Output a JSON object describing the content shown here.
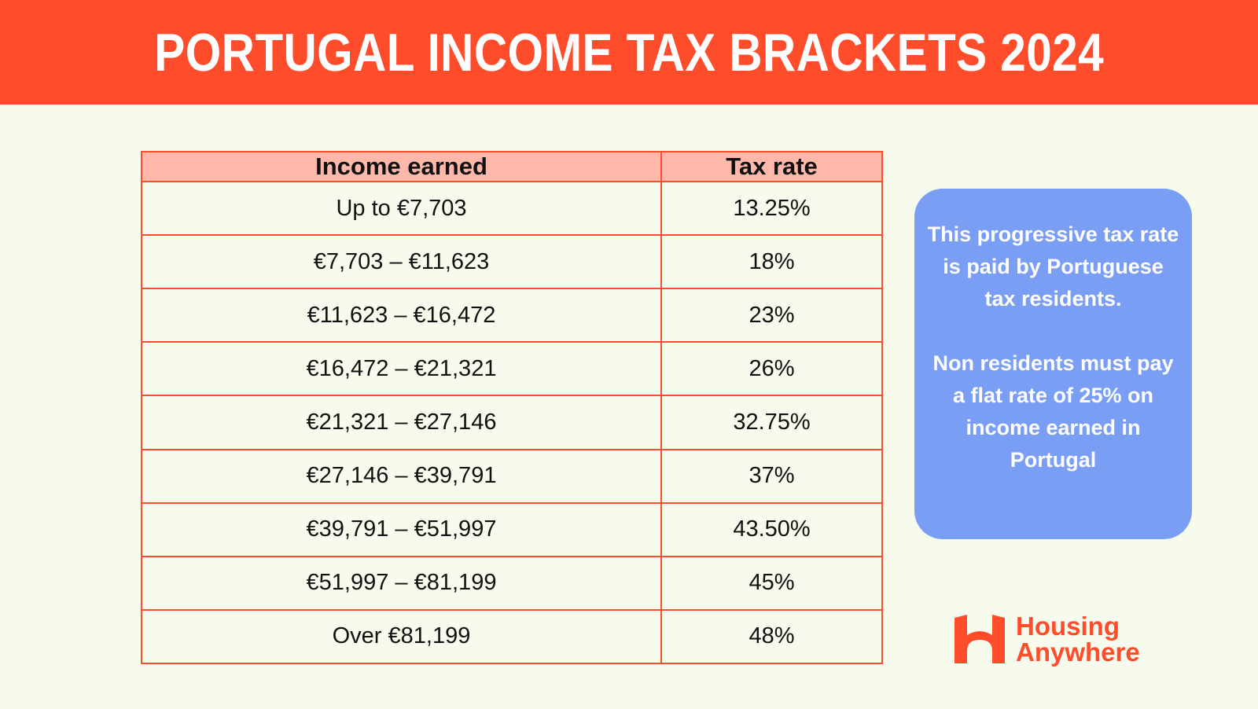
{
  "header": {
    "title": "PORTUGAL INCOME TAX BRACKETS 2024"
  },
  "chart_data": {
    "type": "table",
    "columns": [
      "Income earned",
      "Tax rate"
    ],
    "rows": [
      [
        "Up to €7,703",
        "13.25%"
      ],
      [
        "€7,703 – €11,623",
        "18%"
      ],
      [
        "€11,623 – €16,472",
        "23%"
      ],
      [
        "€16,472 – €21,321",
        "26%"
      ],
      [
        "€21,321 – €27,146",
        "32.75%"
      ],
      [
        "€27,146 – €39,791",
        "37%"
      ],
      [
        "€39,791 – €51,997",
        "43.50%"
      ],
      [
        "€51,997 – €81,199",
        "45%"
      ],
      [
        "Over €81,199",
        "48%"
      ]
    ]
  },
  "info_box": {
    "paragraph_1": "This progressive tax rate is paid by Portuguese tax residents.",
    "paragraph_2": "Non residents must pay a flat rate of 25% on income earned in Portugal"
  },
  "logo": {
    "line_1": "Housing",
    "line_2": "Anywhere",
    "icon": "housing-anywhere-logo-icon"
  },
  "colors": {
    "accent": "#ff4c2b",
    "header_row": "#ffb8aa",
    "background": "#f6fbee",
    "info_box": "#7b9ef5"
  }
}
